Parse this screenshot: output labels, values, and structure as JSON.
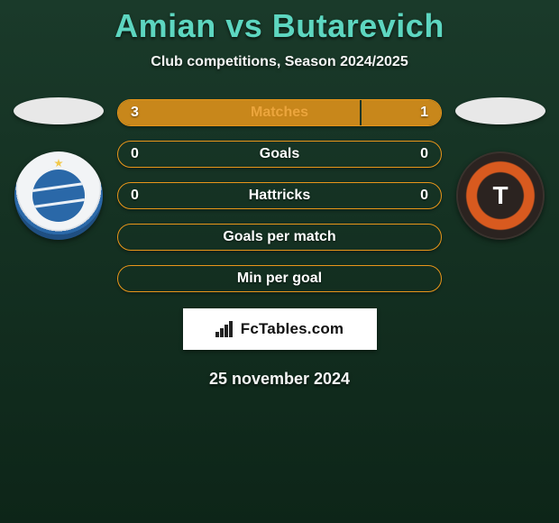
{
  "header": {
    "title": "Amian vs Butarevich",
    "title_color": "#5dd6c0",
    "subtitle": "Club competitions, Season 2024/2025"
  },
  "colors": {
    "accent": "#5dd6c0",
    "bar_border": "#e8951a",
    "bar_fill": "#e8951a",
    "bar_empty_bg": "rgba(0,0,0,0)",
    "text": "#ffffff"
  },
  "bars": [
    {
      "label": "Matches",
      "left": "3",
      "right": "1",
      "left_pct": 75,
      "right_pct": 25
    },
    {
      "label": "Goals",
      "left": "0",
      "right": "0",
      "left_pct": 0,
      "right_pct": 0
    },
    {
      "label": "Hattricks",
      "left": "0",
      "right": "0",
      "left_pct": 0,
      "right_pct": 0
    },
    {
      "label": "Goals per match",
      "left": "",
      "right": "",
      "left_pct": 0,
      "right_pct": 0
    },
    {
      "label": "Min per goal",
      "left": "",
      "right": "",
      "left_pct": 0,
      "right_pct": 0
    }
  ],
  "brand": {
    "text": "FcTables.com"
  },
  "date": "25 november 2024",
  "clubs": {
    "left": {
      "name": "dinamo-minsk-badge"
    },
    "right": {
      "name": "torpedo-belaz-badge"
    }
  }
}
